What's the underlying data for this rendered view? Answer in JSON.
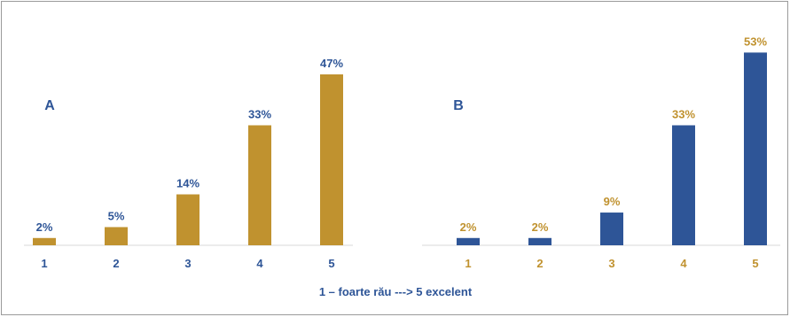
{
  "chart_data": [
    {
      "type": "bar",
      "panel_label": "A",
      "categories": [
        "1",
        "2",
        "3",
        "4",
        "5"
      ],
      "values": [
        2,
        5,
        14,
        33,
        47
      ],
      "data_labels": [
        "2%",
        "5%",
        "14%",
        "33%",
        "47%"
      ],
      "ylim": [
        0,
        55
      ],
      "grid": false,
      "colors": {
        "bar": "#C0922F",
        "data_label": "#2E5597",
        "tick_label": "#2E5597",
        "panel_label": "#2E5597"
      }
    },
    {
      "type": "bar",
      "panel_label": "B",
      "categories": [
        "1",
        "2",
        "3",
        "4",
        "5"
      ],
      "values": [
        2,
        2,
        9,
        33,
        53
      ],
      "data_labels": [
        "2%",
        "2%",
        "9%",
        "33%",
        "53%"
      ],
      "ylim": [
        0,
        55
      ],
      "grid": false,
      "colors": {
        "bar": "#2E5597",
        "data_label": "#C0922F",
        "tick_label": "#C0922F",
        "panel_label": "#2E5597"
      }
    }
  ],
  "caption": "1 – foarte rău ---> 5 excelent",
  "colors": {
    "axis": "#d9d9d9",
    "caption": "#2E5597"
  }
}
